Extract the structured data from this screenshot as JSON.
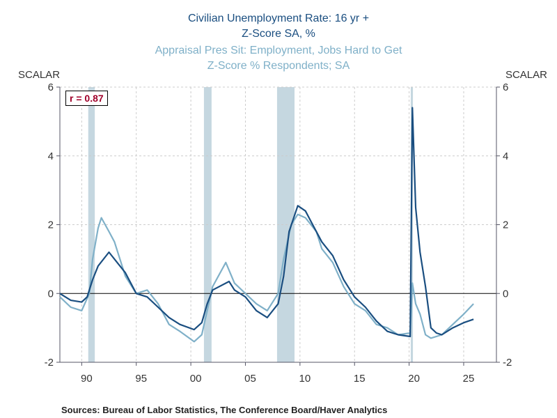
{
  "chart_data": {
    "type": "line",
    "title_series1": [
      "Civilian Unemployment Rate: 16 yr +",
      "Z-Score  SA, %"
    ],
    "title_series2": [
      "Appraisal Pres Sit: Employment, Jobs Hard to Get",
      "Z-Score  % Respondents; SA"
    ],
    "ylabel_left": "SCALAR",
    "ylabel_right": "SCALAR",
    "ylim": [
      -2,
      6
    ],
    "yticks": [
      -2,
      0,
      2,
      4,
      6
    ],
    "xlim": [
      1988,
      2028
    ],
    "xticks": [
      1990,
      1995,
      2000,
      2005,
      2010,
      2015,
      2020,
      2025
    ],
    "xtick_labels": [
      "90",
      "95",
      "00",
      "05",
      "10",
      "15",
      "20",
      "25"
    ],
    "grid": true,
    "annotation": "r = 0.87",
    "annotation_color": "#a0002a",
    "recessions": [
      [
        1990.6,
        1991.2
      ],
      [
        2001.2,
        2001.9
      ],
      [
        2007.9,
        2009.5
      ],
      [
        2020.15,
        2020.35
      ]
    ],
    "recession_color": "#c5d7e0",
    "series": [
      {
        "color": "#1a4e80",
        "x": [
          1988,
          1989,
          1990,
          1990.5,
          1991,
          1991.5,
          1992.5,
          1993,
          1994,
          1995,
          1996,
          1997,
          1998,
          1999,
          2000.3,
          2001,
          2001.5,
          2002,
          2003.5,
          2004,
          2005,
          2006,
          2007,
          2008,
          2008.5,
          2009,
          2009.8,
          2010.5,
          2011,
          2012,
          2013,
          2014,
          2015,
          2016,
          2017,
          2018,
          2019,
          2020.1,
          2020.3,
          2020.6,
          2021,
          2021.5,
          2022,
          2022.5,
          2023,
          2024,
          2025,
          2025.9
        ],
        "y": [
          0.0,
          -0.2,
          -0.25,
          -0.1,
          0.4,
          0.8,
          1.2,
          1.0,
          0.6,
          0.0,
          -0.1,
          -0.4,
          -0.7,
          -0.9,
          -1.05,
          -0.85,
          -0.3,
          0.1,
          0.35,
          0.1,
          -0.1,
          -0.5,
          -0.7,
          -0.3,
          0.5,
          1.8,
          2.55,
          2.4,
          2.1,
          1.5,
          1.1,
          0.4,
          -0.1,
          -0.4,
          -0.8,
          -1.1,
          -1.2,
          -1.25,
          5.4,
          2.5,
          1.2,
          0.2,
          -1.0,
          -1.15,
          -1.2,
          -1.0,
          -0.85,
          -0.75
        ]
      },
      {
        "color": "#7fb0c8",
        "x": [
          1988,
          1989,
          1990,
          1990.7,
          1991,
          1991.5,
          1991.8,
          1992.5,
          1993,
          1994,
          1995,
          1996,
          1997,
          1998,
          1999,
          2000.3,
          2001,
          2001.5,
          2002,
          2003.2,
          2004,
          2005,
          2006,
          2007,
          2008,
          2008.5,
          2009.2,
          2009.8,
          2010.5,
          2011.5,
          2012,
          2013,
          2014,
          2015,
          2016,
          2017,
          2018,
          2019,
          2020.1,
          2020.3,
          2020.6,
          2021,
          2021.5,
          2022,
          2023,
          2024,
          2025,
          2025.9
        ],
        "y": [
          -0.1,
          -0.4,
          -0.5,
          0.0,
          1.0,
          1.9,
          2.2,
          1.8,
          1.5,
          0.5,
          0.0,
          0.1,
          -0.3,
          -0.9,
          -1.1,
          -1.4,
          -1.2,
          -0.5,
          0.2,
          0.9,
          0.3,
          0.0,
          -0.3,
          -0.5,
          0.0,
          1.0,
          2.0,
          2.3,
          2.2,
          1.8,
          1.3,
          0.9,
          0.2,
          -0.3,
          -0.5,
          -0.9,
          -1.0,
          -1.2,
          -1.15,
          0.3,
          -0.3,
          -0.6,
          -1.2,
          -1.3,
          -1.2,
          -0.9,
          -0.6,
          -0.3
        ]
      }
    ]
  },
  "footer": {
    "sources": "Sources:  Bureau of Labor Statistics, The Conference Board/Haver Analytics"
  }
}
